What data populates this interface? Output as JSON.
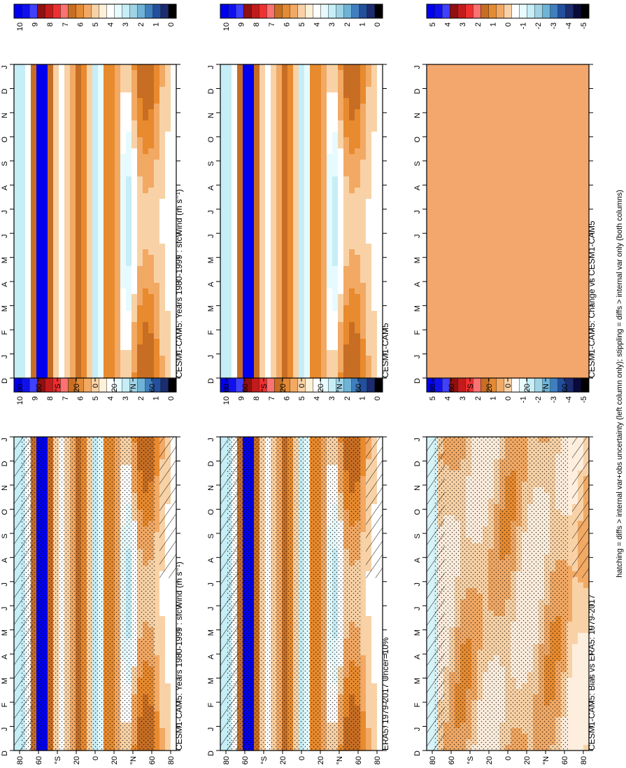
{
  "footer_note": "hatching = diffs > internal var+obs uncertainty (left column only); stippling = diffs > internal var only (both columns)",
  "colors": {
    "deep_blue": "#0000ee",
    "white": "#ffffff",
    "light_orange": "#f8d2a6",
    "mid_orange": "#f2a964",
    "orange": "#e88a2e",
    "dark_orange": "#c76e24",
    "red": "#f23a3a",
    "uniform_change": "#f3a76c"
  },
  "chart_data": [
    {
      "type": "heatmap",
      "title": "CESM1-CAM5: Years 1980-1999 : sfcWind (m s⁻¹)",
      "x_ticks": [
        "D",
        "J",
        "F",
        "M",
        "A",
        "M",
        "J",
        "J",
        "A",
        "S",
        "O",
        "N",
        "D",
        "J"
      ],
      "y_ticks": [
        "80",
        "60",
        "°N",
        "20",
        "0",
        "20",
        "°S",
        "60",
        "80"
      ],
      "colorbar": [
        "10",
        "9",
        "8",
        "7",
        "6",
        "5",
        "4",
        "3",
        "2",
        "1",
        "0"
      ],
      "hatched": true,
      "stippled": true
    },
    {
      "type": "heatmap",
      "title": "CESM1-CAM5: Years 1980-1999 : sfcWind (m s⁻¹)",
      "x_ticks": [
        "D",
        "J",
        "F",
        "M",
        "A",
        "M",
        "J",
        "J",
        "A",
        "S",
        "O",
        "N",
        "D",
        "J"
      ],
      "y_ticks": [
        "80",
        "60",
        "°N",
        "20",
        "0",
        "20",
        "°S",
        "60",
        "80"
      ],
      "colorbar": [
        "10",
        "9",
        "8",
        "7",
        "6",
        "5",
        "4",
        "3",
        "2",
        "1",
        "0"
      ],
      "hatched": false,
      "stippled": false
    },
    {
      "type": "heatmap",
      "title": "ERA5: 1979-2017 Uncer=10%",
      "x_ticks": [
        "D",
        "J",
        "F",
        "M",
        "A",
        "M",
        "J",
        "J",
        "A",
        "S",
        "O",
        "N",
        "D",
        "J"
      ],
      "y_ticks": [
        "80",
        "60",
        "°N",
        "20",
        "0",
        "20",
        "°S",
        "60",
        "80"
      ],
      "colorbar": [
        "10",
        "9",
        "8",
        "7",
        "6",
        "5",
        "4",
        "3",
        "2",
        "1",
        "0"
      ],
      "hatched": true,
      "stippled": true
    },
    {
      "type": "heatmap",
      "title": "CESM1-CAM5",
      "x_ticks": [
        "D",
        "J",
        "F",
        "M",
        "A",
        "M",
        "J",
        "J",
        "A",
        "S",
        "O",
        "N",
        "D",
        "J"
      ],
      "y_ticks": [
        "80",
        "60",
        "°N",
        "20",
        "0",
        "20",
        "°S",
        "60",
        "80"
      ],
      "colorbar": [
        "10",
        "9",
        "8",
        "7",
        "6",
        "5",
        "4",
        "3",
        "2",
        "1",
        "0"
      ],
      "hatched": false,
      "stippled": false
    },
    {
      "type": "heatmap",
      "title": "CESM1-CAM5: Bias vs ERA5: 1979-2017",
      "x_ticks": [
        "D",
        "J",
        "F",
        "M",
        "A",
        "M",
        "J",
        "J",
        "A",
        "S",
        "O",
        "N",
        "D",
        "J"
      ],
      "y_ticks": [
        "80",
        "60",
        "°N",
        "20",
        "0",
        "20",
        "°S",
        "60",
        "80"
      ],
      "colorbar": [
        "5",
        "4",
        "3",
        "2",
        "1",
        "0",
        "-1",
        "-2",
        "-3",
        "-4",
        "-5"
      ],
      "hatched": true,
      "stippled": true
    },
    {
      "type": "heatmap",
      "title": "CESM1-CAM5: Change vs CESM1-CAM5",
      "x_ticks": [
        "D",
        "J",
        "F",
        "M",
        "A",
        "M",
        "J",
        "J",
        "A",
        "S",
        "O",
        "N",
        "D",
        "J"
      ],
      "y_ticks": [
        "80",
        "60",
        "°N",
        "20",
        "0",
        "20",
        "°S",
        "60",
        "80"
      ],
      "colorbar": [
        "5",
        "4",
        "3",
        "2",
        "1",
        "0",
        "-1",
        "-2",
        "-3",
        "-4",
        "-5"
      ],
      "hatched": false,
      "stippled": false,
      "uniform": true
    }
  ]
}
